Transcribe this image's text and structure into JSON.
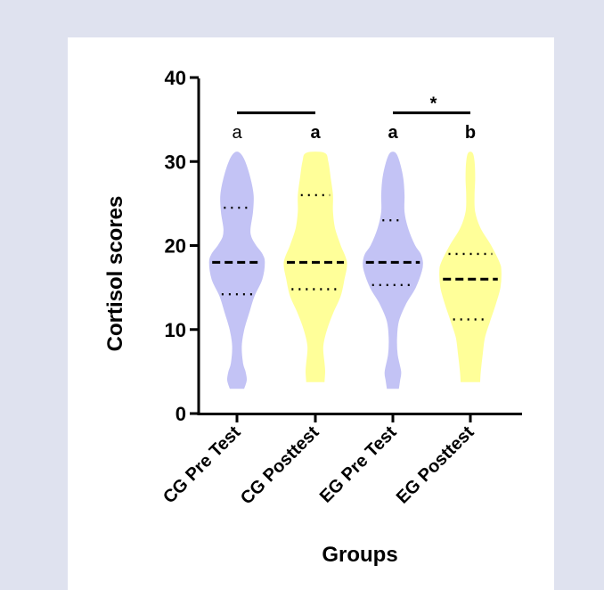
{
  "chart_data": {
    "type": "violin",
    "xlabel": "Groups",
    "ylabel": "Cortisol scores",
    "ylim": [
      0,
      40
    ],
    "yticks": [
      0,
      10,
      20,
      30,
      40
    ],
    "grid": false,
    "categories": [
      "CG Pre Test",
      "CG Posttest",
      "EG Pre Test",
      "EG Posttest"
    ],
    "colors": {
      "CG Pre Test": "#c3c3f5",
      "CG Posttest": "#ffff99",
      "EG Pre Test": "#c3c3f5",
      "EG Posttest": "#ffff99"
    },
    "violins": [
      {
        "name": "CG Pre Test",
        "min": 3,
        "max": 31,
        "median": 18,
        "q1": 14.2,
        "q3": 24.5,
        "density": [
          [
            3,
            0.22
          ],
          [
            4,
            0.3
          ],
          [
            5,
            0.26
          ],
          [
            6,
            0.18
          ],
          [
            8,
            0.14
          ],
          [
            10,
            0.22
          ],
          [
            12,
            0.38
          ],
          [
            14,
            0.55
          ],
          [
            16,
            0.8
          ],
          [
            18,
            0.88
          ],
          [
            19,
            0.8
          ],
          [
            20,
            0.6
          ],
          [
            21,
            0.45
          ],
          [
            22,
            0.42
          ],
          [
            24,
            0.5
          ],
          [
            26,
            0.52
          ],
          [
            28,
            0.42
          ],
          [
            30,
            0.25
          ],
          [
            31,
            0.08
          ]
        ]
      },
      {
        "name": "CG Posttest",
        "min": 3.8,
        "max": 31,
        "median": 18,
        "q1": 14.8,
        "q3": 26,
        "density": [
          [
            3.8,
            0.28
          ],
          [
            5,
            0.3
          ],
          [
            6,
            0.28
          ],
          [
            8,
            0.24
          ],
          [
            10,
            0.36
          ],
          [
            12,
            0.56
          ],
          [
            14,
            0.8
          ],
          [
            16,
            0.92
          ],
          [
            18,
            1.0
          ],
          [
            20,
            0.8
          ],
          [
            22,
            0.62
          ],
          [
            24,
            0.55
          ],
          [
            26,
            0.55
          ],
          [
            28,
            0.48
          ],
          [
            30,
            0.4
          ],
          [
            31,
            0.28
          ]
        ]
      },
      {
        "name": "EG Pre Test",
        "min": 3,
        "max": 31,
        "median": 18,
        "q1": 15.3,
        "q3": 23,
        "density": [
          [
            3,
            0.18
          ],
          [
            4,
            0.22
          ],
          [
            5,
            0.25
          ],
          [
            7,
            0.14
          ],
          [
            9,
            0.12
          ],
          [
            11,
            0.18
          ],
          [
            13,
            0.4
          ],
          [
            15,
            0.72
          ],
          [
            17,
            0.92
          ],
          [
            18,
            0.95
          ],
          [
            19,
            0.88
          ],
          [
            20,
            0.7
          ],
          [
            22,
            0.48
          ],
          [
            24,
            0.36
          ],
          [
            26,
            0.36
          ],
          [
            28,
            0.32
          ],
          [
            30,
            0.2
          ],
          [
            31,
            0.08
          ]
        ]
      },
      {
        "name": "EG Posttest",
        "min": 3.8,
        "max": 31,
        "median": 16,
        "q1": 11.2,
        "q3": 19,
        "density": [
          [
            3.8,
            0.3
          ],
          [
            5,
            0.32
          ],
          [
            7,
            0.38
          ],
          [
            9,
            0.45
          ],
          [
            11,
            0.62
          ],
          [
            13,
            0.8
          ],
          [
            15,
            0.95
          ],
          [
            17,
            0.98
          ],
          [
            18,
            0.92
          ],
          [
            20,
            0.65
          ],
          [
            22,
            0.32
          ],
          [
            24,
            0.14
          ],
          [
            26,
            0.12
          ],
          [
            28,
            0.14
          ],
          [
            30,
            0.12
          ],
          [
            31,
            0.06
          ]
        ]
      }
    ],
    "group_labels": [
      "a",
      "a",
      "a",
      "b"
    ],
    "comparisons": [
      {
        "from": "CG Pre Test",
        "to": "CG Posttest",
        "label": ""
      },
      {
        "from": "EG Pre Test",
        "to": "EG Posttest",
        "label": "*"
      }
    ]
  }
}
